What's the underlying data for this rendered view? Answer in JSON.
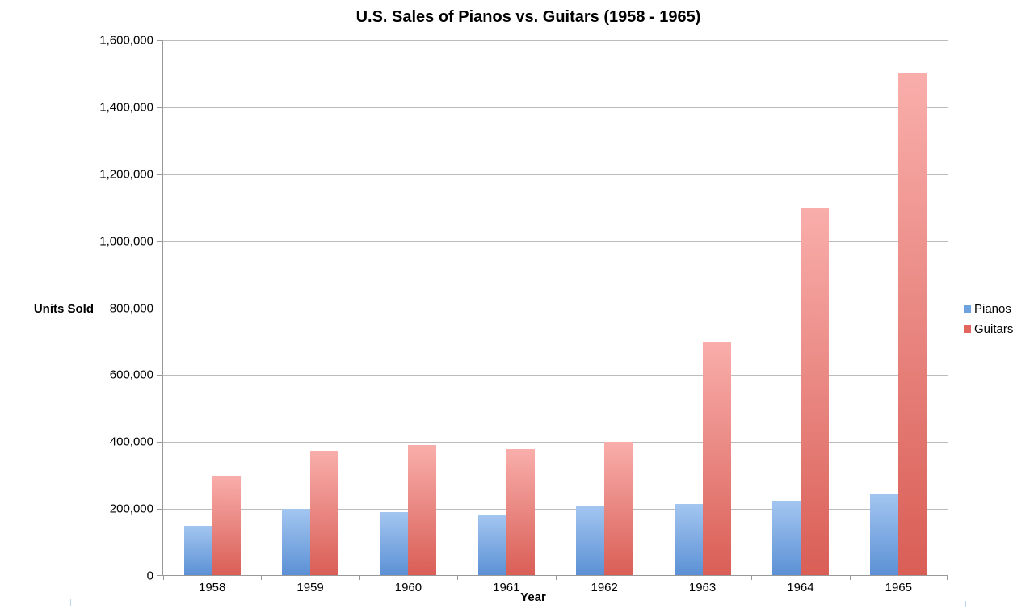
{
  "chart_data": {
    "type": "bar",
    "title": "U.S. Sales of Pianos vs. Guitars (1958 - 1965)",
    "xlabel": "Year",
    "ylabel": "Units Sold",
    "categories": [
      "1958",
      "1959",
      "1960",
      "1961",
      "1962",
      "1963",
      "1964",
      "1965"
    ],
    "series": [
      {
        "name": "Pianos",
        "values": [
          150000,
          200000,
          190000,
          180000,
          210000,
          215000,
          225000,
          245000
        ],
        "bar_gradient_top": "#A3C6F0",
        "bar_gradient_bottom": "#5B90D5",
        "legend_color": "#6FA3E0"
      },
      {
        "name": "Guitars",
        "values": [
          300000,
          375000,
          390000,
          380000,
          400000,
          700000,
          1100000,
          1500000
        ],
        "bar_gradient_top": "#F9AEAB",
        "bar_gradient_bottom": "#D95E56",
        "legend_color": "#E0665E"
      }
    ],
    "ylim": [
      0,
      1600000
    ],
    "ytick_step": 200000,
    "ytick_labels": [
      "0",
      "200,000",
      "400,000",
      "600,000",
      "800,000",
      "1,000,000",
      "1,200,000",
      "1,400,000",
      "1,600,000"
    ],
    "grid": true,
    "legend_position": "right"
  },
  "colors": {
    "gridline": "#bcbcbc",
    "axis": "#999999",
    "text": "#000000",
    "background": "#ffffff"
  }
}
